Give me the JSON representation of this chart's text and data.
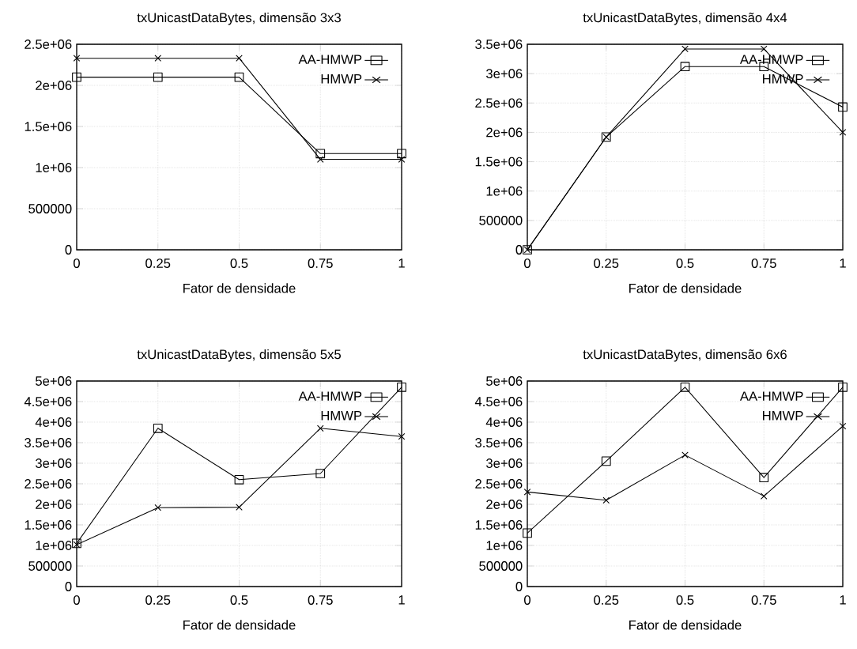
{
  "chart_data": [
    {
      "type": "line",
      "title": "txUnicastDataBytes, dimensão 3x3",
      "xlabel": "Fator de densidade",
      "x": [
        0,
        0.25,
        0.5,
        0.75,
        1
      ],
      "xlim": [
        0,
        1
      ],
      "xticks": [
        0,
        0.25,
        0.5,
        0.75,
        1
      ],
      "ylim": [
        0,
        2500000
      ],
      "yticks": [
        0,
        500000,
        {
          "value": 1000000,
          "label": "1e+06"
        },
        {
          "value": 1500000,
          "label": "1.5e+06"
        },
        {
          "value": 2000000,
          "label": "2e+06"
        },
        {
          "value": 2500000,
          "label": "2.5e+06"
        }
      ],
      "grid": true,
      "legend": "top right",
      "line_style": "solid",
      "series": [
        {
          "name": "AA-HMWP",
          "color": "#000000",
          "marker": "square",
          "values": [
            2100000,
            2100000,
            2100000,
            1170000,
            1170000
          ]
        },
        {
          "name": "HMWP",
          "color": "#000000",
          "marker": "cross",
          "values": [
            2330000,
            2330000,
            2330000,
            1100000,
            1100000
          ]
        }
      ]
    },
    {
      "type": "line",
      "title": "txUnicastDataBytes, dimensão 4x4",
      "xlabel": "Fator de densidade",
      "x": [
        0,
        0.25,
        0.5,
        0.75,
        1
      ],
      "xlim": [
        0,
        1
      ],
      "xticks": [
        0,
        0.25,
        0.5,
        0.75,
        1
      ],
      "ylim": [
        0,
        3500000
      ],
      "yticks": [
        0,
        500000,
        {
          "value": 1000000,
          "label": "1e+06"
        },
        {
          "value": 1500000,
          "label": "1.5e+06"
        },
        {
          "value": 2000000,
          "label": "2e+06"
        },
        {
          "value": 2500000,
          "label": "2.5e+06"
        },
        {
          "value": 3000000,
          "label": "3e+06"
        },
        {
          "value": 3500000,
          "label": "3.5e+06"
        }
      ],
      "grid": true,
      "legend": "top right",
      "line_style": "solid",
      "series": [
        {
          "name": "AA-HMWP",
          "color": "#000000",
          "marker": "square",
          "values": [
            0,
            1920000,
            3120000,
            3120000,
            2430000
          ]
        },
        {
          "name": "HMWP",
          "color": "#000000",
          "marker": "cross",
          "values": [
            0,
            1920000,
            3420000,
            3420000,
            2000000
          ]
        }
      ]
    },
    {
      "type": "line",
      "title": "txUnicastDataBytes, dimensão 5x5",
      "xlabel": "Fator de densidade",
      "x": [
        0,
        0.25,
        0.5,
        0.75,
        1
      ],
      "xlim": [
        0,
        1
      ],
      "xticks": [
        0,
        0.25,
        0.5,
        0.75,
        1
      ],
      "ylim": [
        0,
        5000000
      ],
      "yticks": [
        0,
        500000,
        {
          "value": 1000000,
          "label": "1e+06"
        },
        {
          "value": 1500000,
          "label": "1.5e+06"
        },
        {
          "value": 2000000,
          "label": "2e+06"
        },
        {
          "value": 2500000,
          "label": "2.5e+06"
        },
        {
          "value": 3000000,
          "label": "3e+06"
        },
        {
          "value": 3500000,
          "label": "3.5e+06"
        },
        {
          "value": 4000000,
          "label": "4e+06"
        },
        {
          "value": 4500000,
          "label": "4.5e+06"
        },
        {
          "value": 5000000,
          "label": "5e+06"
        }
      ],
      "grid": true,
      "legend": "top right",
      "line_style": "solid",
      "series": [
        {
          "name": "AA-HMWP",
          "color": "#000000",
          "marker": "square",
          "values": [
            1050000,
            3850000,
            2600000,
            2750000,
            4850000
          ]
        },
        {
          "name": "HMWP",
          "color": "#000000",
          "marker": "cross",
          "values": [
            1020000,
            1920000,
            1930000,
            3850000,
            3650000
          ]
        }
      ]
    },
    {
      "type": "line",
      "title": "txUnicastDataBytes, dimensão 6x6",
      "xlabel": "Fator de densidade",
      "x": [
        0,
        0.25,
        0.5,
        0.75,
        1
      ],
      "xlim": [
        0,
        1
      ],
      "xticks": [
        0,
        0.25,
        0.5,
        0.75,
        1
      ],
      "ylim": [
        0,
        5000000
      ],
      "yticks": [
        0,
        500000,
        {
          "value": 1000000,
          "label": "1e+06"
        },
        {
          "value": 1500000,
          "label": "1.5e+06"
        },
        {
          "value": 2000000,
          "label": "2e+06"
        },
        {
          "value": 2500000,
          "label": "2.5e+06"
        },
        {
          "value": 3000000,
          "label": "3e+06"
        },
        {
          "value": 3500000,
          "label": "3.5e+06"
        },
        {
          "value": 4000000,
          "label": "4e+06"
        },
        {
          "value": 4500000,
          "label": "4.5e+06"
        },
        {
          "value": 5000000,
          "label": "5e+06"
        }
      ],
      "grid": true,
      "legend": "top right",
      "line_style": "solid",
      "series": [
        {
          "name": "AA-HMWP",
          "color": "#000000",
          "marker": "square",
          "values": [
            1300000,
            3050000,
            4850000,
            2650000,
            4850000
          ]
        },
        {
          "name": "HMWP",
          "color": "#000000",
          "marker": "cross",
          "values": [
            2300000,
            2100000,
            3200000,
            2200000,
            3900000
          ]
        }
      ]
    }
  ]
}
